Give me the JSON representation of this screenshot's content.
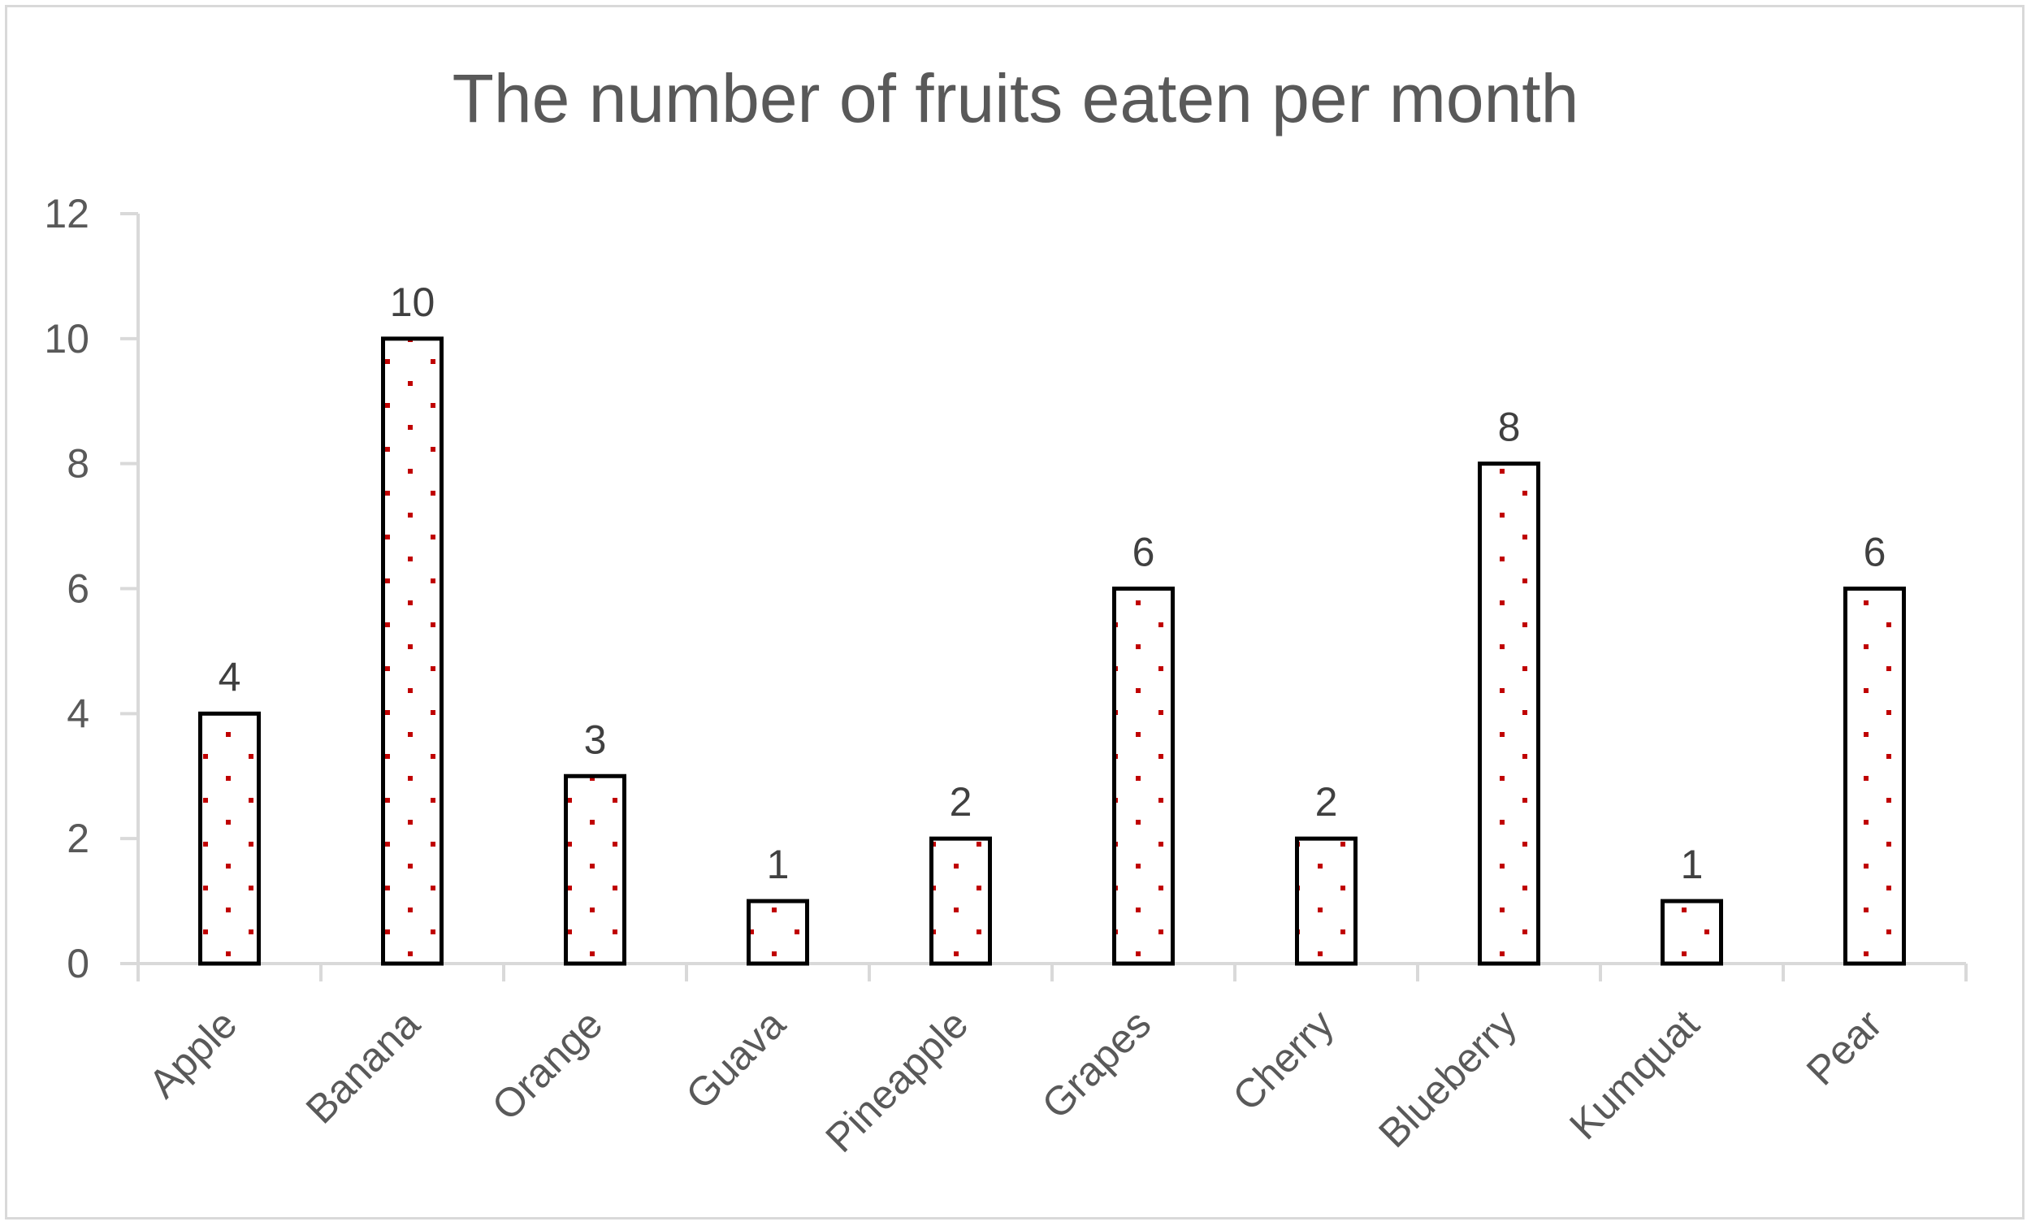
{
  "chart_data": {
    "type": "bar",
    "title": "The number of fruits eaten per month",
    "xlabel": "",
    "ylabel": "",
    "categories": [
      "Apple",
      "Banana",
      "Orange",
      "Guava",
      "Pineapple",
      "Grapes",
      "Cherry",
      "Blueberry",
      "Kumquat",
      "Pear"
    ],
    "values": [
      4,
      10,
      3,
      1,
      2,
      6,
      2,
      8,
      1,
      6
    ],
    "ylim": [
      0,
      12
    ],
    "yticks": [
      0,
      2,
      4,
      6,
      8,
      10,
      12
    ],
    "ytick_labels": [
      "0",
      "2",
      "4",
      "6",
      "8",
      "10",
      "12"
    ],
    "data_labels": [
      "4",
      "10",
      "3",
      "1",
      "2",
      "6",
      "2",
      "8",
      "1",
      "6"
    ],
    "grid": false,
    "legend": "none",
    "colors": {
      "bar_border": "#000000",
      "bar_fill": "#ffffff",
      "bar_pattern_dots": "#c00000",
      "axis": "#d9d9d9",
      "text": "#595959",
      "data_label": "#404040",
      "frame": "#d9d9d9"
    },
    "pattern": "dotted"
  }
}
